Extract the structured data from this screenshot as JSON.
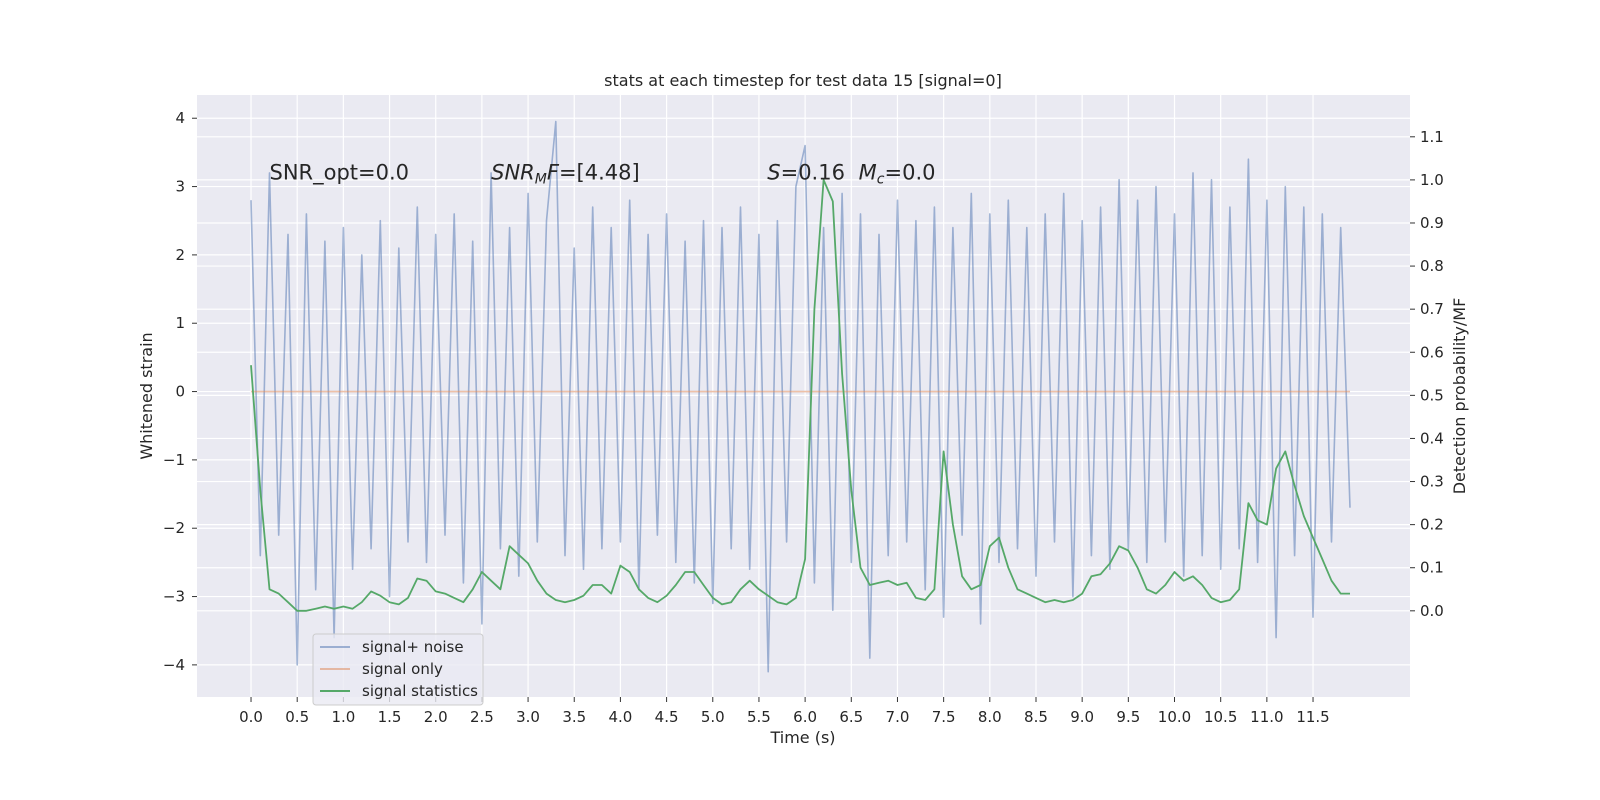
{
  "chart_data": {
    "type": "line",
    "title": "stats at each timestep for test data 15 [signal=0]",
    "xlabel": "Time (s)",
    "ylabel": "Whitened strain",
    "y2label": "Detection probability/MF",
    "x": [
      0,
      0.1,
      0.2,
      0.3,
      0.4,
      0.5,
      0.6,
      0.7,
      0.8,
      0.9,
      1.0,
      1.1,
      1.2,
      1.3,
      1.4,
      1.5,
      1.6,
      1.7,
      1.8,
      1.9,
      2.0,
      2.1,
      2.2,
      2.3,
      2.4,
      2.5,
      2.6,
      2.7,
      2.8,
      2.9,
      3.0,
      3.1,
      3.2,
      3.3,
      3.4,
      3.5,
      3.6,
      3.7,
      3.8,
      3.9,
      4.0,
      4.1,
      4.2,
      4.3,
      4.4,
      4.5,
      4.6,
      4.7,
      4.8,
      4.9,
      5.0,
      5.1,
      5.2,
      5.3,
      5.4,
      5.5,
      5.6,
      5.7,
      5.8,
      5.9,
      6.0,
      6.1,
      6.2,
      6.3,
      6.4,
      6.5,
      6.6,
      6.7,
      6.8,
      6.9,
      7.0,
      7.1,
      7.2,
      7.3,
      7.4,
      7.5,
      7.6,
      7.7,
      7.8,
      7.9,
      8.0,
      8.1,
      8.2,
      8.3,
      8.4,
      8.5,
      8.6,
      8.7,
      8.8,
      8.9,
      9.0,
      9.1,
      9.2,
      9.3,
      9.4,
      9.5,
      9.6,
      9.7,
      9.8,
      9.9,
      10.0,
      10.1,
      10.2,
      10.3,
      10.4,
      10.5,
      10.6,
      10.7,
      10.8,
      10.9,
      11.0,
      11.1,
      11.2,
      11.3,
      11.4,
      11.5,
      11.6,
      11.7,
      11.8,
      11.9
    ],
    "xlim": [
      -0.585,
      12.55
    ],
    "ylim": [
      -4.47,
      4.34
    ],
    "y2lim": [
      -0.2,
      1.197
    ],
    "xticks": [
      {
        "value": 0,
        "label": "0.0"
      },
      0.5,
      {
        "value": 1,
        "label": "1.0"
      },
      1.5,
      {
        "value": 2,
        "label": "2.0"
      },
      2.5,
      {
        "value": 3,
        "label": "3.0"
      },
      3.5,
      {
        "value": 4,
        "label": "4.0"
      },
      4.5,
      {
        "value": 5,
        "label": "5.0"
      },
      5.5,
      {
        "value": 6,
        "label": "6.0"
      },
      6.5,
      {
        "value": 7,
        "label": "7.0"
      },
      7.5,
      {
        "value": 8,
        "label": "8.0"
      },
      8.5,
      {
        "value": 9,
        "label": "9.0"
      },
      9.5,
      {
        "value": 10,
        "label": "10.0"
      },
      10.5,
      {
        "value": 11,
        "label": "11.0"
      },
      11.5
    ],
    "yticks": [
      {
        "value": -4,
        "label": "−4"
      },
      {
        "value": -3,
        "label": "−3"
      },
      {
        "value": -2,
        "label": "−2"
      },
      {
        "value": -1,
        "label": "−1"
      },
      0,
      1,
      2,
      3,
      4
    ],
    "y2ticks": [
      {
        "value": 0,
        "label": "0.0"
      },
      0.1,
      0.2,
      0.3,
      0.4,
      0.5,
      0.6,
      0.7,
      0.8,
      0.9,
      {
        "value": 1,
        "label": "1.0"
      },
      1.1
    ],
    "grid": true,
    "legend": "lower left",
    "series": [
      {
        "name": "signal+ noise",
        "color": "#4c72b0",
        "opacity": 0.5,
        "values": [
          2.8,
          -2.4,
          3.2,
          -2.1,
          2.3,
          -4.0,
          2.6,
          -2.9,
          2.2,
          -3.6,
          2.4,
          -2.6,
          2.0,
          -2.3,
          2.5,
          -3.0,
          2.1,
          -2.2,
          2.7,
          -2.5,
          2.3,
          -2.1,
          2.6,
          -2.8,
          2.2,
          -3.4,
          3.2,
          -2.3,
          2.4,
          -2.7,
          2.9,
          -2.2,
          2.5,
          3.95,
          -2.4,
          2.1,
          -2.6,
          2.7,
          -2.3,
          2.4,
          -2.2,
          2.8,
          -2.9,
          2.3,
          -2.1,
          2.6,
          -2.5,
          2.2,
          -2.8,
          2.5,
          -3.1,
          2.4,
          -2.3,
          2.7,
          -2.6,
          2.3,
          -4.1,
          2.5,
          -2.2,
          3.0,
          3.6,
          -2.8,
          2.4,
          -3.2,
          2.9,
          -2.5,
          2.6,
          -3.9,
          2.3,
          -2.4,
          2.8,
          -2.2,
          2.5,
          -2.9,
          2.7,
          -3.3,
          2.4,
          -2.1,
          2.9,
          -3.4,
          2.6,
          -2.5,
          2.8,
          -2.3,
          2.4,
          -2.7,
          2.6,
          -2.2,
          2.9,
          -3.0,
          2.5,
          -2.4,
          2.7,
          -2.6,
          3.1,
          -2.3,
          2.8,
          -2.5,
          3.0,
          -2.2,
          2.6,
          -2.7,
          3.2,
          -2.4,
          3.1,
          -2.6,
          2.7,
          -2.3,
          3.4,
          -2.5,
          2.8,
          -3.6,
          3.0,
          -2.4,
          2.7,
          -3.3,
          2.6,
          -2.2,
          2.4,
          -1.7
        ]
      },
      {
        "name": "signal only",
        "color": "#dd8452",
        "opacity": 0.5,
        "x": [
          0,
          11.9
        ],
        "values": [
          0,
          0
        ]
      },
      {
        "name": "signal statistics",
        "color": "#55a868",
        "opacity": 1,
        "axis": "y2",
        "values": [
          0.57,
          0.28,
          0.05,
          0.04,
          0.02,
          0.0,
          0.0,
          0.005,
          0.01,
          0.005,
          0.01,
          0.005,
          0.02,
          0.045,
          0.035,
          0.02,
          0.015,
          0.03,
          0.075,
          0.07,
          0.045,
          0.04,
          0.03,
          0.02,
          0.05,
          0.09,
          0.07,
          0.05,
          0.15,
          0.13,
          0.11,
          0.07,
          0.04,
          0.025,
          0.02,
          0.025,
          0.035,
          0.06,
          0.06,
          0.04,
          0.105,
          0.09,
          0.05,
          0.03,
          0.02,
          0.035,
          0.06,
          0.09,
          0.09,
          0.06,
          0.03,
          0.015,
          0.02,
          0.05,
          0.07,
          0.05,
          0.035,
          0.02,
          0.015,
          0.03,
          0.12,
          0.7,
          1.0,
          0.95,
          0.55,
          0.28,
          0.1,
          0.06,
          0.065,
          0.07,
          0.06,
          0.065,
          0.03,
          0.025,
          0.05,
          0.37,
          0.2,
          0.08,
          0.05,
          0.06,
          0.15,
          0.17,
          0.1,
          0.05,
          0.04,
          0.03,
          0.02,
          0.025,
          0.02,
          0.025,
          0.04,
          0.08,
          0.085,
          0.11,
          0.15,
          0.14,
          0.1,
          0.05,
          0.04,
          0.06,
          0.09,
          0.07,
          0.08,
          0.06,
          0.03,
          0.02,
          0.025,
          0.05,
          0.25,
          0.21,
          0.2,
          0.33,
          0.37,
          0.29,
          0.22,
          0.17,
          0.12,
          0.07,
          0.04,
          0.04
        ]
      }
    ],
    "annotations": [
      {
        "parts": [
          {
            "text": "SNR_opt=0.0"
          }
        ]
      },
      {
        "parts": [
          {
            "text": "SNR",
            "italic": true
          },
          {
            "text": "M",
            "italic": true,
            "sub": true
          },
          {
            "text": "F",
            "italic": true
          },
          {
            "text": "=[4.48]"
          }
        ]
      },
      {
        "parts": [
          {
            "text": "S",
            "italic": true
          },
          {
            "text": "=0.16"
          }
        ]
      },
      {
        "parts": [
          {
            "text": "M",
            "italic": true
          },
          {
            "text": "c",
            "italic": true,
            "sub": true
          },
          {
            "text": "=0.0"
          }
        ]
      }
    ]
  }
}
